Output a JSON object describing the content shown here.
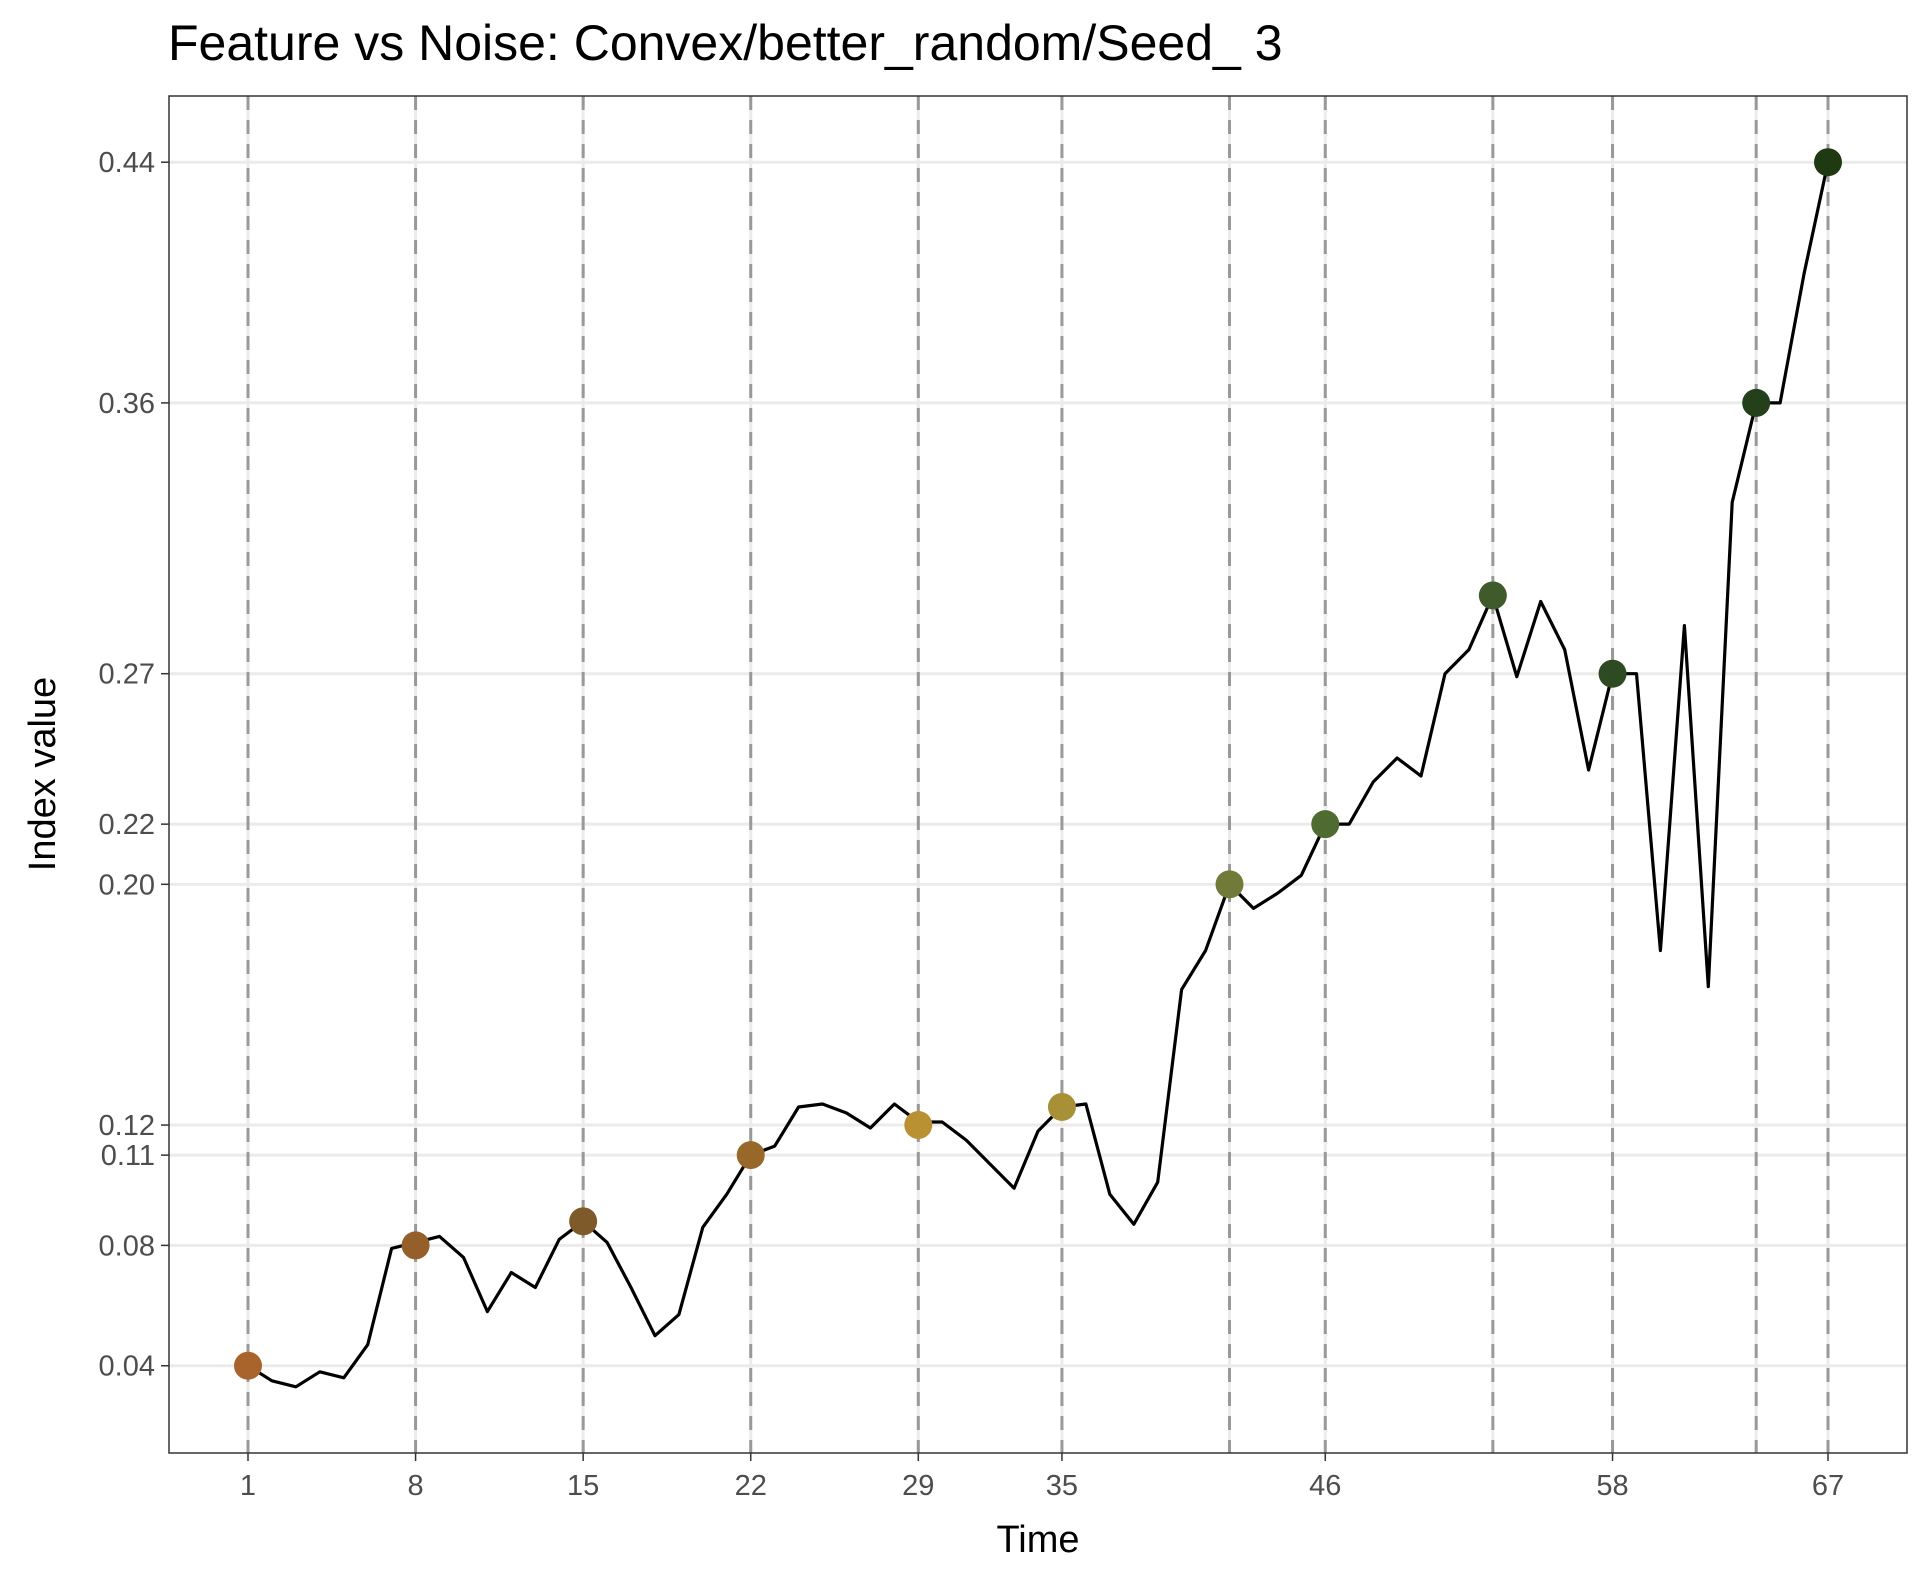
{
  "chart_data": {
    "type": "line",
    "title": "Feature vs Noise: Convex/better_random/Seed_ 3",
    "xlabel": "Time",
    "ylabel": "Index value",
    "xlim": [
      -2.3,
      70.3
    ],
    "ylim": [
      0.011,
      0.462
    ],
    "grid": "horizontal major lines only",
    "legend": "none",
    "x_ticks": [
      1,
      8,
      15,
      22,
      29,
      35,
      46,
      58,
      67
    ],
    "x_tick_labels": [
      "1",
      "8",
      "15",
      "22",
      "29",
      "35",
      "46",
      "58",
      "67"
    ],
    "y_ticks": [
      0.04,
      0.08,
      0.11,
      0.12,
      0.2,
      0.22,
      0.27,
      0.36,
      0.44
    ],
    "y_tick_labels": [
      "0.04",
      "0.08",
      "0.11",
      "0.12",
      "0.20",
      "0.22",
      "0.27",
      "0.36",
      "0.44"
    ],
    "vlines": [
      1,
      8,
      15,
      22,
      29,
      35,
      42,
      46,
      53,
      58,
      64,
      67
    ],
    "series": [
      {
        "x": [
          1,
          2,
          3,
          4,
          5,
          6,
          7,
          8,
          9,
          10,
          11,
          12,
          13,
          14,
          15,
          16,
          17,
          18,
          19,
          20,
          21,
          22,
          23,
          24,
          25,
          26,
          27,
          28,
          29,
          30,
          31,
          32,
          33,
          34,
          35,
          36,
          37,
          38,
          39,
          40,
          41,
          42,
          43,
          44,
          45,
          46,
          47,
          48,
          49,
          50,
          51,
          52,
          53,
          54,
          55,
          56,
          57,
          58,
          59,
          60,
          61,
          62,
          63,
          64,
          65,
          66,
          67
        ],
        "y": [
          0.04,
          0.035,
          0.033,
          0.038,
          0.036,
          0.047,
          0.079,
          0.081,
          0.083,
          0.076,
          0.058,
          0.071,
          0.066,
          0.082,
          0.088,
          0.081,
          0.066,
          0.05,
          0.057,
          0.086,
          0.097,
          0.11,
          0.113,
          0.126,
          0.127,
          0.124,
          0.119,
          0.127,
          0.121,
          0.121,
          0.115,
          0.107,
          0.099,
          0.118,
          0.126,
          0.127,
          0.097,
          0.087,
          0.101,
          0.165,
          0.178,
          0.2,
          0.192,
          0.197,
          0.203,
          0.22,
          0.22,
          0.234,
          0.242,
          0.236,
          0.27,
          0.278,
          0.296,
          0.269,
          0.294,
          0.278,
          0.238,
          0.27,
          0.27,
          0.178,
          0.286,
          0.166,
          0.327,
          0.36,
          0.36,
          0.403,
          0.44
        ]
      }
    ],
    "points": [
      {
        "x": 1,
        "y": 0.04,
        "color": "#A8642A"
      },
      {
        "x": 8,
        "y": 0.08,
        "color": "#955F29"
      },
      {
        "x": 15,
        "y": 0.088,
        "color": "#7E5A2A"
      },
      {
        "x": 22,
        "y": 0.11,
        "color": "#98682B"
      },
      {
        "x": 29,
        "y": 0.12,
        "color": "#BA9132"
      },
      {
        "x": 35,
        "y": 0.126,
        "color": "#A89036"
      },
      {
        "x": 42,
        "y": 0.2,
        "color": "#717A38"
      },
      {
        "x": 46,
        "y": 0.22,
        "color": "#4F6B31"
      },
      {
        "x": 53,
        "y": 0.296,
        "color": "#3F5A2B"
      },
      {
        "x": 58,
        "y": 0.27,
        "color": "#2E4A22"
      },
      {
        "x": 64,
        "y": 0.36,
        "color": "#23401A"
      },
      {
        "x": 67,
        "y": 0.44,
        "color": "#1F3A12"
      }
    ],
    "line_color": "#000000",
    "vline_color": "#999999",
    "grid_color": "#EBEBEB"
  }
}
